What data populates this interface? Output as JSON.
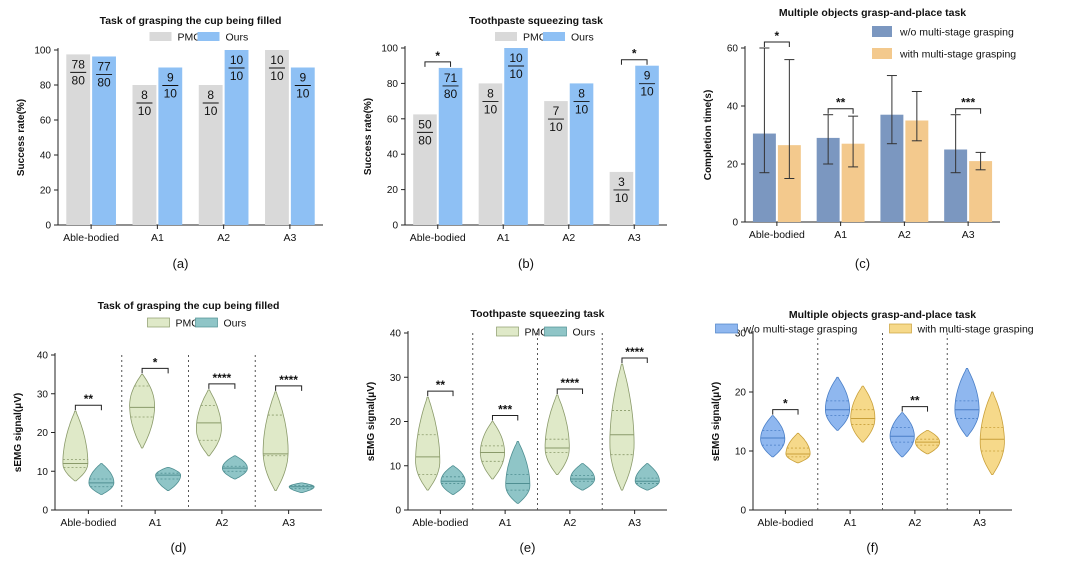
{
  "chart_data": [
    {
      "id": "a",
      "type": "bar",
      "panel_label": "(a)",
      "title": "Task of grasping the cup being filled",
      "ylabel": "Success rate(%)",
      "ylim": [
        0,
        100
      ],
      "yticks": [
        0,
        20,
        40,
        60,
        80,
        100
      ],
      "categories": [
        "Able-bodied",
        "A1",
        "A2",
        "A3"
      ],
      "legend": "top-center",
      "series": [
        {
          "name": "PMC",
          "color": "#d9d9d9",
          "values": [
            97.5,
            80,
            80,
            100
          ],
          "labels": [
            [
              "78",
              "80"
            ],
            [
              "8",
              "10"
            ],
            [
              "8",
              "10"
            ],
            [
              "10",
              "10"
            ]
          ]
        },
        {
          "name": "Ours",
          "color": "#8ec0f4",
          "values": [
            96.3,
            90,
            100,
            90
          ],
          "labels": [
            [
              "77",
              "80"
            ],
            [
              "9",
              "10"
            ],
            [
              "10",
              "10"
            ],
            [
              "9",
              "10"
            ]
          ]
        }
      ],
      "significance": []
    },
    {
      "id": "b",
      "type": "bar",
      "panel_label": "(b)",
      "title": "Toothpaste squeezing task",
      "ylabel": "Success rate(%)",
      "ylim": [
        0,
        100
      ],
      "yticks": [
        0,
        20,
        40,
        60,
        80,
        100
      ],
      "categories": [
        "Able-bodied",
        "A1",
        "A2",
        "A3"
      ],
      "legend": "top-center",
      "series": [
        {
          "name": "PMC",
          "color": "#d9d9d9",
          "values": [
            62.5,
            80,
            70,
            30
          ],
          "labels": [
            [
              "50",
              "80"
            ],
            [
              "8",
              "10"
            ],
            [
              "7",
              "10"
            ],
            [
              "3",
              "10"
            ]
          ]
        },
        {
          "name": "Ours",
          "color": "#8ec0f4",
          "values": [
            88.75,
            100,
            80,
            90
          ],
          "labels": [
            [
              "71",
              "80"
            ],
            [
              "10",
              "10"
            ],
            [
              "8",
              "10"
            ],
            [
              "9",
              "10"
            ]
          ]
        }
      ],
      "significance": [
        {
          "group": 0,
          "text": "*"
        },
        {
          "group": 3,
          "text": "*"
        }
      ]
    },
    {
      "id": "c",
      "type": "bar",
      "panel_label": "(c)",
      "title": "Multiple objects grasp-and-place task",
      "ylabel": "Completion time(s)",
      "ylim": [
        0,
        60
      ],
      "yticks": [
        0,
        20,
        40,
        60
      ],
      "categories": [
        "Able-bodied",
        "A1",
        "A2",
        "A3"
      ],
      "legend": "top-right",
      "series": [
        {
          "name": "w/o multi-stage grasping",
          "color": "#7b97c0",
          "values": [
            30.5,
            29,
            37,
            25
          ],
          "err_low": [
            17,
            20,
            27,
            17
          ],
          "err_high": [
            60,
            37,
            50.5,
            37
          ]
        },
        {
          "name": "with multi-stage grasping",
          "color": "#f3c98d",
          "values": [
            26.5,
            27,
            35,
            21
          ],
          "err_low": [
            15,
            19,
            28,
            18
          ],
          "err_high": [
            56,
            36.5,
            45,
            24
          ]
        }
      ],
      "significance": [
        {
          "group": 0,
          "text": "*"
        },
        {
          "group": 1,
          "text": "**"
        },
        {
          "group": 3,
          "text": "***"
        }
      ]
    },
    {
      "id": "d",
      "type": "violin",
      "panel_label": "(d)",
      "title": "Task of grasping the cup being filled",
      "ylabel": "sEMG signal(μV)",
      "ylim": [
        0,
        40
      ],
      "yticks": [
        0,
        10,
        20,
        30,
        40
      ],
      "categories": [
        "Able-bodied",
        "A1",
        "A2",
        "A3"
      ],
      "legend": "top-center",
      "series": [
        {
          "name": "PMC",
          "color": "#dfe9c8",
          "stroke": "#8a9a6a",
          "violins": [
            {
              "min": 7.5,
              "max": 25.5,
              "q1": 11,
              "median": 12,
              "q3": 13,
              "peak": 12
            },
            {
              "min": 16,
              "max": 35,
              "q1": 24,
              "median": 26.5,
              "q3": 32,
              "peak": 27
            },
            {
              "min": 14,
              "max": 31,
              "q1": 18,
              "median": 22.5,
              "q3": 27,
              "peak": 21
            },
            {
              "min": 5,
              "max": 30.5,
              "q1": 14,
              "median": 14.5,
              "q3": 24.5,
              "peak": 15
            }
          ]
        },
        {
          "name": "Ours",
          "color": "#8fc5c7",
          "stroke": "#4f8f92",
          "violins": [
            {
              "min": 4,
              "max": 12,
              "q1": 6,
              "median": 7,
              "q3": 8,
              "peak": 7
            },
            {
              "min": 5,
              "max": 11,
              "q1": 8,
              "median": 9,
              "q3": 9.5,
              "peak": 9
            },
            {
              "min": 8,
              "max": 14,
              "q1": 10,
              "median": 10.8,
              "q3": 11.3,
              "peak": 10.8
            },
            {
              "min": 4.5,
              "max": 7,
              "q1": 5.5,
              "median": 6,
              "q3": 6.3,
              "peak": 6
            }
          ]
        }
      ],
      "significance": [
        {
          "group": 0,
          "text": "**"
        },
        {
          "group": 1,
          "text": "*"
        },
        {
          "group": 2,
          "text": "****"
        },
        {
          "group": 3,
          "text": "****"
        }
      ]
    },
    {
      "id": "e",
      "type": "violin",
      "panel_label": "(e)",
      "title": "Toothpaste squeezing task",
      "ylabel": "sEMG signal(μV)",
      "ylim": [
        0,
        40
      ],
      "yticks": [
        0,
        10,
        20,
        30,
        40
      ],
      "categories": [
        "Able-bodied",
        "A1",
        "A2",
        "A3"
      ],
      "legend": "top-center",
      "series": [
        {
          "name": "PMC",
          "color": "#dfe9c8",
          "stroke": "#8a9a6a",
          "violins": [
            {
              "min": 4.5,
              "max": 25.5,
              "q1": 8,
              "median": 12,
              "q3": 17,
              "peak": 11
            },
            {
              "min": 7,
              "max": 20,
              "q1": 11,
              "median": 13,
              "q3": 14.5,
              "peak": 13
            },
            {
              "min": 8,
              "max": 26,
              "q1": 13,
              "median": 14,
              "q3": 16,
              "peak": 14
            },
            {
              "min": 4.5,
              "max": 33,
              "q1": 12.5,
              "median": 17,
              "q3": 22.5,
              "peak": 15
            }
          ]
        },
        {
          "name": "Ours",
          "color": "#8fc5c7",
          "stroke": "#4f8f92",
          "violins": [
            {
              "min": 3.5,
              "max": 10,
              "q1": 6,
              "median": 6.5,
              "q3": 7.5,
              "peak": 6.5
            },
            {
              "min": 1.5,
              "max": 15.5,
              "q1": 4.5,
              "median": 6,
              "q3": 8,
              "peak": 5.5
            },
            {
              "min": 4.5,
              "max": 10.5,
              "q1": 6.5,
              "median": 7,
              "q3": 7.8,
              "peak": 7
            },
            {
              "min": 4.5,
              "max": 10.5,
              "q1": 6,
              "median": 6.5,
              "q3": 7.2,
              "peak": 6.5
            }
          ]
        }
      ],
      "significance": [
        {
          "group": 0,
          "text": "**"
        },
        {
          "group": 1,
          "text": "***"
        },
        {
          "group": 2,
          "text": "****"
        },
        {
          "group": 3,
          "text": "****"
        }
      ]
    },
    {
      "id": "f",
      "type": "violin",
      "panel_label": "(f)",
      "title": "Multiple objects grasp-and-place task",
      "ylabel": "sEMG signal(μV)",
      "ylim": [
        0,
        30
      ],
      "yticks": [
        0,
        10,
        20,
        30
      ],
      "categories": [
        "Able-bodied",
        "A1",
        "A2",
        "A3"
      ],
      "legend": "top-center",
      "series": [
        {
          "name": "w/o multi-stage grasping",
          "color": "#8fb7ef",
          "stroke": "#4a7fc7",
          "violins": [
            {
              "min": 9,
              "max": 16,
              "q1": 11,
              "median": 12.2,
              "q3": 13.5,
              "peak": 12
            },
            {
              "min": 13.5,
              "max": 22.5,
              "q1": 16,
              "median": 17,
              "q3": 18.5,
              "peak": 17
            },
            {
              "min": 9,
              "max": 16.5,
              "q1": 11.5,
              "median": 12.5,
              "q3": 14,
              "peak": 12.5
            },
            {
              "min": 12.5,
              "max": 24,
              "q1": 15.5,
              "median": 17,
              "q3": 18.5,
              "peak": 17
            }
          ]
        },
        {
          "name": "with multi-stage grasping",
          "color": "#f6d98a",
          "stroke": "#c9a03a",
          "violins": [
            {
              "min": 8,
              "max": 13,
              "q1": 9,
              "median": 9.5,
              "q3": 10.5,
              "peak": 9.5
            },
            {
              "min": 11.5,
              "max": 21,
              "q1": 14.5,
              "median": 15.5,
              "q3": 17,
              "peak": 15.5
            },
            {
              "min": 9.5,
              "max": 13.5,
              "q1": 11,
              "median": 11.5,
              "q3": 12,
              "peak": 11.5
            },
            {
              "min": 6,
              "max": 20,
              "q1": 10,
              "median": 12,
              "q3": 14,
              "peak": 11.5
            }
          ]
        }
      ],
      "significance": [
        {
          "group": 0,
          "text": "*"
        },
        {
          "group": 2,
          "text": "**"
        }
      ]
    }
  ]
}
